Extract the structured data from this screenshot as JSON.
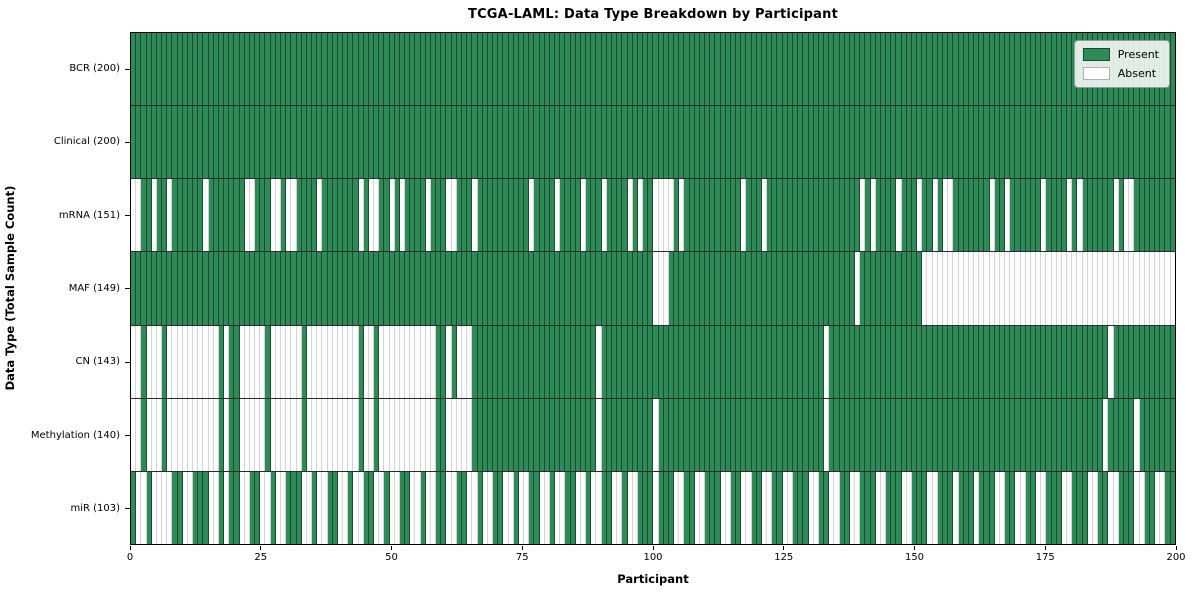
{
  "chart_data": {
    "type": "heatmap",
    "title": "TCGA-LAML: Data Type Breakdown by Participant",
    "xlabel": "Participant",
    "ylabel": "Data Type (Total Sample Count)",
    "legend": {
      "present": "Present",
      "absent": "Absent",
      "position": "upper right"
    },
    "colors": {
      "present": "#2e8b57",
      "absent": "#ffffff",
      "axis": "#000000",
      "background": "#ffffff"
    },
    "x_axis": {
      "range": [
        0,
        200
      ],
      "ticks": [
        0,
        25,
        50,
        75,
        100,
        125,
        150,
        175,
        200
      ]
    },
    "n_participants": 200,
    "rows": [
      {
        "name": "BCR",
        "label": "BCR (200)",
        "count": 200,
        "pattern": "1111111111111111111111111111111111111111111111111111111111111111111111111111111111111111111111111111111111111111111111111111111111111111111111111111111111111111111111111111111111111111111111111111111111"
      },
      {
        "name": "Clinical",
        "label": "Clinical (200)",
        "count": 200,
        "pattern": "1111111111111111111111111111111111111111111111111111111111111111111111111111111111111111111111111111111111111111111111111111111111111111111111111111111111111111111111111111111111111111111111111111111111"
      },
      {
        "name": "mRNA",
        "label": "mRNA (151)",
        "count": 151,
        "pattern": "0011011011111101111111001110010011110111111101001101011110111001110111111111101111011110111011110101100001011111111111011101111111111111111110101111011101101001111111011011111101111010111111010011111111"
      },
      {
        "name": "MAF",
        "label": "MAF (149)",
        "count": 149,
        "pattern": "1111111111111111111111111111111111111111111111111111111111111111111111111111111111111111111111111111100011111111111111111111111111111111111101111111111110000000000000000000000000000000000000000000000000"
      },
      {
        "name": "CN",
        "label": "CN (143)",
        "count": 143,
        "pattern": "0010001000000000010110000010000001000000000010010000000000011010001111111111111111111111110111111111111111111111111111111111111111111101111111111111111111111111111111111111111111111111111110111111111111"
      },
      {
        "name": "Methylation",
        "label": "Methylation (140)",
        "count": 140,
        "pattern": "0010001000000000010110000010000001000000000010010000000000011000001111111111111111111111110111111111101111111111111111111111111111111101111111111111111111111111111111111111111111111111111101111101111111"
      },
      {
        "name": "miR",
        "label": "miR (103)",
        "count": 103,
        "pattern": "1001000011001110010110011001001110010011001001100100110010011001100100110010011001001100100110010011101110011001110011001100110011100110011001110011100111001110111011100110011001110011100110011100110011"
      }
    ]
  }
}
